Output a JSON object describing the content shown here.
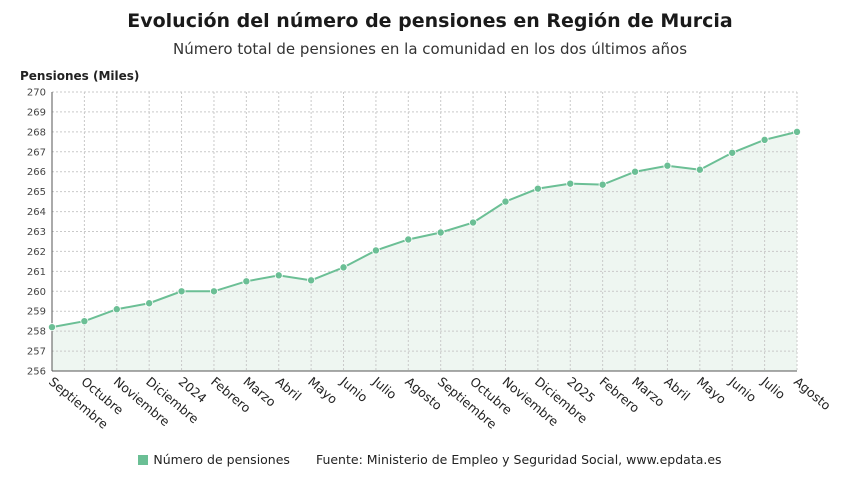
{
  "title": "Evolución del número de pensiones en Región de Murcia",
  "subtitle": "Número total de pensiones en la comunidad en los dos últimos años",
  "legend": {
    "label": "Número de pensiones"
  },
  "source": "Fuente: Ministerio de Empleo y Seguridad Social, www.epdata.es",
  "colors": {
    "series": "#6bbf95",
    "area": "#eef6f1",
    "grid": "#c9c9c9",
    "axis": "#555555"
  },
  "chart_data": {
    "type": "area",
    "ylabel": "Pensiones (Miles)",
    "xlabel": "",
    "ylim": [
      256,
      270
    ],
    "yticks": [
      256,
      257,
      258,
      259,
      260,
      261,
      262,
      263,
      264,
      265,
      266,
      267,
      268,
      269,
      270
    ],
    "grid": true,
    "legend_position": "bottom",
    "categories": [
      "Septiembre",
      "Octubre",
      "Noviembre",
      "Diciembre",
      "2024",
      "Febrero",
      "Marzo",
      "Abril",
      "Mayo",
      "Junio",
      "Julio",
      "Agosto",
      "Septiembre",
      "Octubre",
      "Noviembre",
      "Diciembre",
      "2025",
      "Febrero",
      "Marzo",
      "Abril",
      "Mayo",
      "Junio",
      "Julio",
      "Agosto"
    ],
    "series": [
      {
        "name": "Número de pensiones",
        "values": [
          258.2,
          258.5,
          259.1,
          259.4,
          260.0,
          260.0,
          260.5,
          260.8,
          260.55,
          261.2,
          262.05,
          262.6,
          262.95,
          263.45,
          264.5,
          265.15,
          265.4,
          265.35,
          266.0,
          266.3,
          266.1,
          266.95,
          267.6,
          268.0
        ]
      }
    ]
  }
}
